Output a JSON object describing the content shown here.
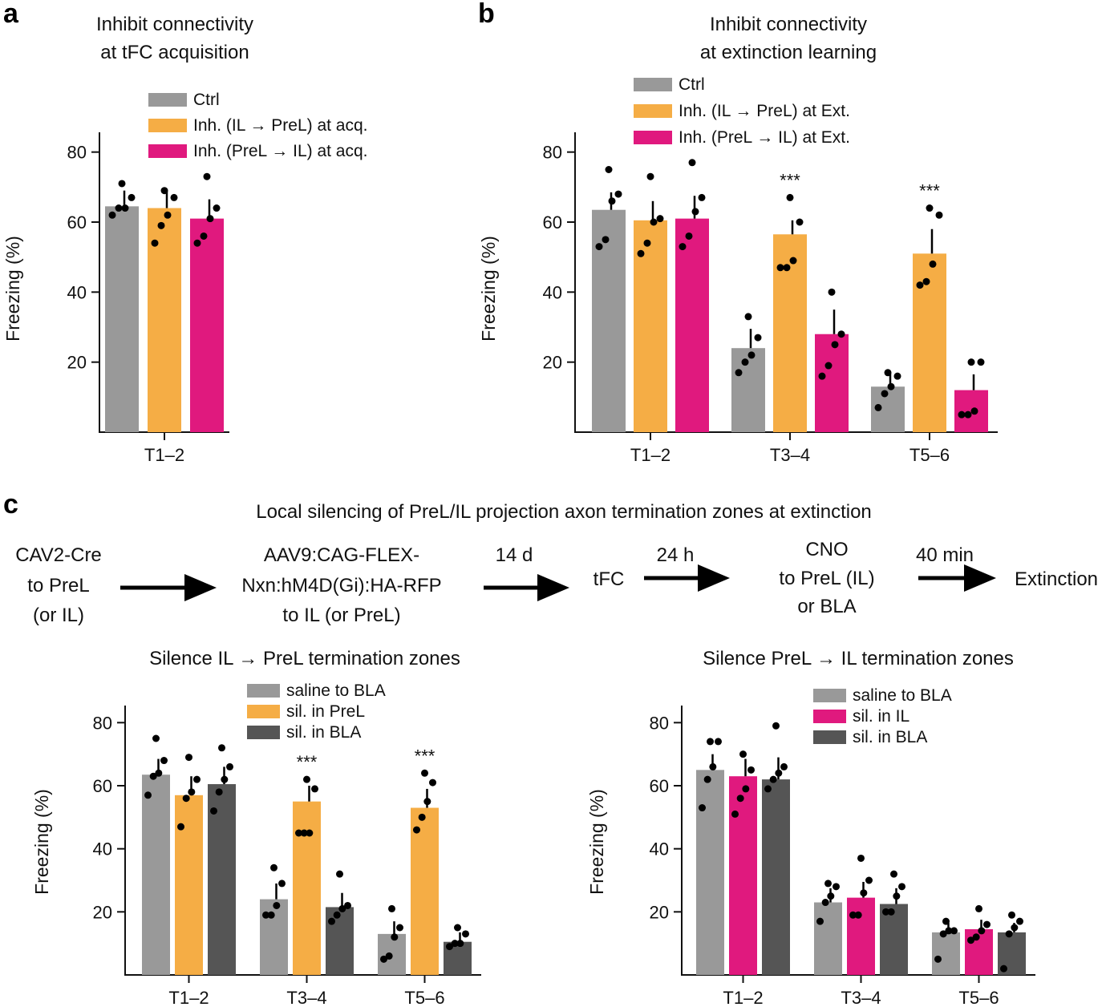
{
  "panels": {
    "a": {
      "letter": "a"
    },
    "b": {
      "letter": "b"
    },
    "c": {
      "letter": "c"
    }
  },
  "colors": {
    "gray": "#999999",
    "orange": "#f5ad45",
    "magenta": "#e0197e",
    "dark": "#555555"
  },
  "workflow": {
    "title": "Local silencing of PreL/IL projection axon termination zones at extinction",
    "steps": [
      [
        "CAV2-Cre",
        "to PreL",
        "(or IL)"
      ],
      [
        "AAV9:CAG-FLEX-",
        "Nxn:hM4D(Gi):HA-RFP",
        "to IL (or PreL)"
      ],
      [
        "tFC"
      ],
      [
        "CNO",
        "to PreL (IL)",
        "or BLA"
      ],
      [
        "Extinction"
      ]
    ],
    "intervals": [
      "14 d",
      "24 h",
      "40 min"
    ]
  },
  "chart_data": [
    {
      "id": "a",
      "type": "bar",
      "title": "Inhibit connectivity at tFC acquisition",
      "title_lines": [
        "Inhibit connectivity",
        "at tFC acquisition"
      ],
      "ylabel": "Freezing (%)",
      "xlabel": "",
      "ylim": [
        0,
        85
      ],
      "yticks": [
        20,
        40,
        60,
        80
      ],
      "categories": [
        "T1–2"
      ],
      "legend": "top",
      "series": [
        {
          "name": "Ctrl",
          "color": "#999999",
          "values": [
            64.5
          ],
          "err": [
            4.5
          ],
          "points": [
            [
              62,
              64,
              64,
              67,
              71
            ]
          ]
        },
        {
          "name": "Inh. (IL → PreL) at acq.",
          "color": "#f5ad45",
          "values": [
            64
          ],
          "err": [
            5
          ],
          "points": [
            [
              54,
              59,
              62,
              67,
              69
            ]
          ]
        },
        {
          "name": "Inh. (PreL → IL) at acq.",
          "color": "#e0197e",
          "values": [
            61
          ],
          "err": [
            5.5
          ],
          "points": [
            [
              54,
              56,
              61,
              64,
              73
            ]
          ]
        }
      ],
      "significance": [
        "",
        "",
        ""
      ]
    },
    {
      "id": "b",
      "type": "bar",
      "title": "Inhibit connectivity at extinction learning",
      "title_lines": [
        "Inhibit connectivity",
        "at extinction learning"
      ],
      "ylabel": "Freezing (%)",
      "xlabel": "",
      "ylim": [
        0,
        85
      ],
      "yticks": [
        20,
        40,
        60,
        80
      ],
      "categories": [
        "T1–2",
        "T3–4",
        "T5–6"
      ],
      "legend": "top",
      "series": [
        {
          "name": "Ctrl",
          "color": "#999999",
          "values": [
            63.5,
            24,
            13
          ],
          "err": [
            5,
            5.5,
            4
          ],
          "points": [
            [
              53,
              55,
              66,
              68,
              75
            ],
            [
              17,
              20,
              22,
              27,
              33
            ],
            [
              7,
              11,
              13,
              16,
              17
            ]
          ]
        },
        {
          "name": "Inh. (IL → PreL) at Ext.",
          "color": "#f5ad45",
          "values": [
            60.5,
            56.5,
            51
          ],
          "err": [
            5.5,
            4,
            7
          ],
          "points": [
            [
              51,
              54,
              60,
              61,
              73
            ],
            [
              47,
              47,
              49,
              60,
              67
            ],
            [
              42,
              43,
              48,
              62,
              64
            ]
          ]
        },
        {
          "name": "Inh. (PreL → IL) at Ext.",
          "color": "#e0197e",
          "values": [
            61,
            28,
            12
          ],
          "err": [
            6.5,
            7,
            4.5
          ],
          "points": [
            [
              53,
              56,
              63,
              67,
              77
            ],
            [
              16,
              19,
              25,
              28,
              40
            ],
            [
              5,
              5,
              6,
              20,
              20
            ]
          ]
        }
      ],
      "significance": [
        "",
        "***",
        ""
      ],
      "sig_bars": [
        [
          1,
          1
        ],
        [
          1,
          2
        ]
      ]
    },
    {
      "id": "c-left",
      "type": "bar",
      "title": "Silence IL → PreL termination zones",
      "title_lines": [
        "Silence IL → PreL termination zones"
      ],
      "ylabel": "Freezing (%)",
      "xlabel": "",
      "ylim": [
        0,
        88
      ],
      "yticks": [
        20,
        40,
        60,
        80
      ],
      "categories": [
        "T1–2",
        "T3–4",
        "T5–6"
      ],
      "legend": "top",
      "series": [
        {
          "name": "saline to BLA",
          "color": "#999999",
          "values": [
            63.5,
            24,
            13
          ],
          "err": [
            5,
            5,
            4
          ],
          "points": [
            [
              57,
              63,
              64,
              68,
              75
            ],
            [
              19,
              19,
              22,
              29,
              34
            ],
            [
              5,
              6,
              12,
              15,
              21
            ]
          ]
        },
        {
          "name": "sil. in PreL",
          "color": "#f5ad45",
          "values": [
            57,
            55,
            53
          ],
          "err": [
            6,
            5,
            6
          ],
          "points": [
            [
              47,
              56,
              58,
              62,
              69
            ],
            [
              45,
              45,
              45,
              59,
              62
            ],
            [
              46,
              50,
              55,
              61,
              64
            ]
          ]
        },
        {
          "name": "sil. in BLA",
          "color": "#555555",
          "values": [
            60.5,
            21.5,
            10.5
          ],
          "err": [
            5.5,
            4.5,
            3
          ],
          "points": [
            [
              52,
              58,
              62,
              66,
              72
            ],
            [
              17,
              19,
              21,
              22,
              32
            ],
            [
              9,
              10,
              10,
              13,
              15
            ]
          ]
        }
      ],
      "significance": [
        "",
        "***",
        ""
      ],
      "sig_bars": [
        [
          1,
          1
        ],
        [
          1,
          2
        ]
      ]
    },
    {
      "id": "c-right",
      "type": "bar",
      "title": "Silence PreL → IL termination zones",
      "title_lines": [
        "Silence PreL → IL termination zones"
      ],
      "ylabel": "Freezing (%)",
      "xlabel": "",
      "ylim": [
        0,
        88
      ],
      "yticks": [
        20,
        40,
        60,
        80
      ],
      "categories": [
        "T1–2",
        "T3–4",
        "T5–6"
      ],
      "legend": "top",
      "series": [
        {
          "name": "saline to BLA",
          "color": "#999999",
          "values": [
            65,
            23,
            13.5
          ],
          "err": [
            5,
            4.5,
            3
          ],
          "points": [
            [
              53,
              62,
              66,
              74,
              74
            ],
            [
              17,
              23,
              25,
              28,
              29
            ],
            [
              5,
              13,
              14,
              14,
              17
            ]
          ]
        },
        {
          "name": "sil. in IL",
          "color": "#e0197e",
          "values": [
            63,
            24.5,
            14.5
          ],
          "err": [
            5.5,
            5,
            3
          ],
          "points": [
            [
              51,
              56,
              59,
              65,
              70
            ],
            [
              19,
              19,
              26,
              30,
              37
            ],
            [
              11,
              12,
              14,
              16,
              21
            ]
          ]
        },
        {
          "name": "sil. in BLA",
          "color": "#555555",
          "values": [
            62,
            22.5,
            13.5
          ],
          "err": [
            7,
            5,
            3
          ],
          "points": [
            [
              59,
              62,
              64,
              66,
              79
            ],
            [
              20,
              20,
              25,
              28,
              32
            ],
            [
              2,
              13,
              15,
              17,
              19
            ]
          ]
        }
      ],
      "significance": [
        "",
        "",
        ""
      ]
    }
  ]
}
